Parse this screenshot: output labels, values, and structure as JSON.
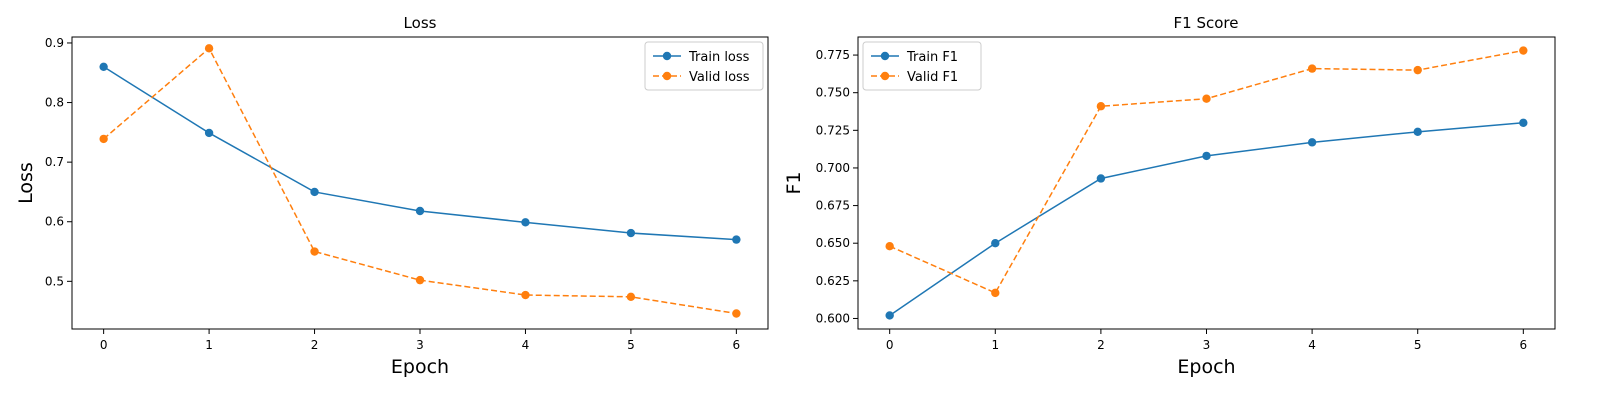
{
  "chart_data": [
    {
      "type": "line",
      "title": "Loss",
      "xlabel": "Epoch",
      "ylabel": "Loss",
      "x": [
        0,
        1,
        2,
        3,
        4,
        5,
        6
      ],
      "xticks": [
        "0",
        "1",
        "2",
        "3",
        "4",
        "5",
        "6"
      ],
      "yticks": [
        "0.5",
        "0.6",
        "0.7",
        "0.8",
        "0.9"
      ],
      "xlim": [
        -0.3,
        6.3
      ],
      "ylim": [
        0.42,
        0.91
      ],
      "grid": false,
      "legend_position": "top-right",
      "series": [
        {
          "name": "Train loss",
          "color": "#1f77b4",
          "linestyle": "solid",
          "marker": "circle",
          "values": [
            0.86,
            0.749,
            0.65,
            0.618,
            0.599,
            0.581,
            0.57
          ]
        },
        {
          "name": "Valid loss",
          "color": "#ff7f0e",
          "linestyle": "dashed",
          "marker": "circle",
          "values": [
            0.739,
            0.891,
            0.55,
            0.502,
            0.477,
            0.474,
            0.446
          ]
        }
      ]
    },
    {
      "type": "line",
      "title": "F1 Score",
      "xlabel": "Epoch",
      "ylabel": "F1",
      "x": [
        0,
        1,
        2,
        3,
        4,
        5,
        6
      ],
      "xticks": [
        "0",
        "1",
        "2",
        "3",
        "4",
        "5",
        "6"
      ],
      "yticks": [
        "0.600",
        "0.625",
        "0.650",
        "0.675",
        "0.700",
        "0.725",
        "0.750",
        "0.775"
      ],
      "xlim": [
        -0.3,
        6.3
      ],
      "ylim": [
        0.593,
        0.787
      ],
      "grid": false,
      "legend_position": "top-left",
      "series": [
        {
          "name": "Train F1",
          "color": "#1f77b4",
          "linestyle": "solid",
          "marker": "circle",
          "values": [
            0.602,
            0.65,
            0.693,
            0.708,
            0.717,
            0.724,
            0.73
          ]
        },
        {
          "name": "Valid F1",
          "color": "#ff7f0e",
          "linestyle": "dashed",
          "marker": "circle",
          "values": [
            0.648,
            0.617,
            0.741,
            0.746,
            0.766,
            0.765,
            0.778
          ]
        }
      ]
    }
  ]
}
